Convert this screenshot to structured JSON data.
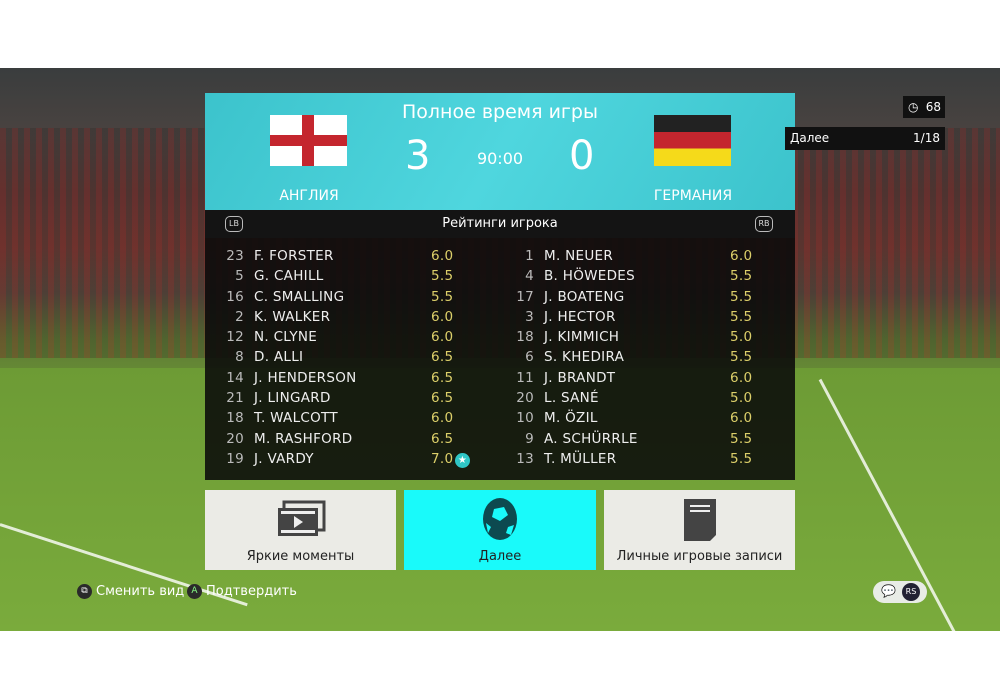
{
  "header": {
    "title": "Полное время игры",
    "home": {
      "name": "АНГЛИЯ",
      "score": "3",
      "flag": "england-flag"
    },
    "away": {
      "name": "ГЕРМАНИЯ",
      "score": "0",
      "flag": "germany-flag"
    },
    "clock": "90:00",
    "accent": "#45cfd8"
  },
  "subheader": {
    "title": "Рейтинги игрока",
    "left_button": "LB",
    "right_button": "RB"
  },
  "home_players": [
    {
      "num": "23",
      "name": "F. FORSTER",
      "rating": "6.0"
    },
    {
      "num": "5",
      "name": "G. CAHILL",
      "rating": "5.5"
    },
    {
      "num": "16",
      "name": "C. SMALLING",
      "rating": "5.5"
    },
    {
      "num": "2",
      "name": "K. WALKER",
      "rating": "6.0"
    },
    {
      "num": "12",
      "name": "N. CLYNE",
      "rating": "6.0"
    },
    {
      "num": "8",
      "name": "D. ALLI",
      "rating": "6.5"
    },
    {
      "num": "14",
      "name": "J. HENDERSON",
      "rating": "6.5"
    },
    {
      "num": "21",
      "name": "J. LINGARD",
      "rating": "6.5"
    },
    {
      "num": "18",
      "name": "T. WALCOTT",
      "rating": "6.0"
    },
    {
      "num": "20",
      "name": "M. RASHFORD",
      "rating": "6.5"
    },
    {
      "num": "19",
      "name": "J. VARDY",
      "rating": "7.0",
      "star": true
    }
  ],
  "away_players": [
    {
      "num": "1",
      "name": "M. NEUER",
      "rating": "6.0"
    },
    {
      "num": "4",
      "name": "B. HÖWEDES",
      "rating": "5.5"
    },
    {
      "num": "17",
      "name": "J. BOATENG",
      "rating": "5.5"
    },
    {
      "num": "3",
      "name": "J. HECTOR",
      "rating": "5.5"
    },
    {
      "num": "18",
      "name": "J. KIMMICH",
      "rating": "5.0"
    },
    {
      "num": "6",
      "name": "S. KHEDIRA",
      "rating": "5.5"
    },
    {
      "num": "11",
      "name": "J. BRANDT",
      "rating": "6.0"
    },
    {
      "num": "20",
      "name": "L. SANÉ",
      "rating": "5.0"
    },
    {
      "num": "10",
      "name": "M. ÖZIL",
      "rating": "6.0"
    },
    {
      "num": "9",
      "name": "A. SCHÜRRLE",
      "rating": "5.5"
    },
    {
      "num": "13",
      "name": "T. MÜLLER",
      "rating": "5.5"
    }
  ],
  "actions": [
    {
      "label": "Яркие моменты",
      "icon": "film-icon"
    },
    {
      "label": "Далее",
      "icon": "ball-icon",
      "selected": true
    },
    {
      "label": "Личные игровые записи",
      "icon": "document-icon"
    }
  ],
  "timer": {
    "icon": "clock-icon",
    "value": "68"
  },
  "next_bar": {
    "label": "Далее",
    "progress": "1/18"
  },
  "hints": [
    {
      "button": "view-button",
      "label": "Сменить вид"
    },
    {
      "button": "A",
      "label": "Подтвердить"
    }
  ],
  "rs_badge": "RS"
}
